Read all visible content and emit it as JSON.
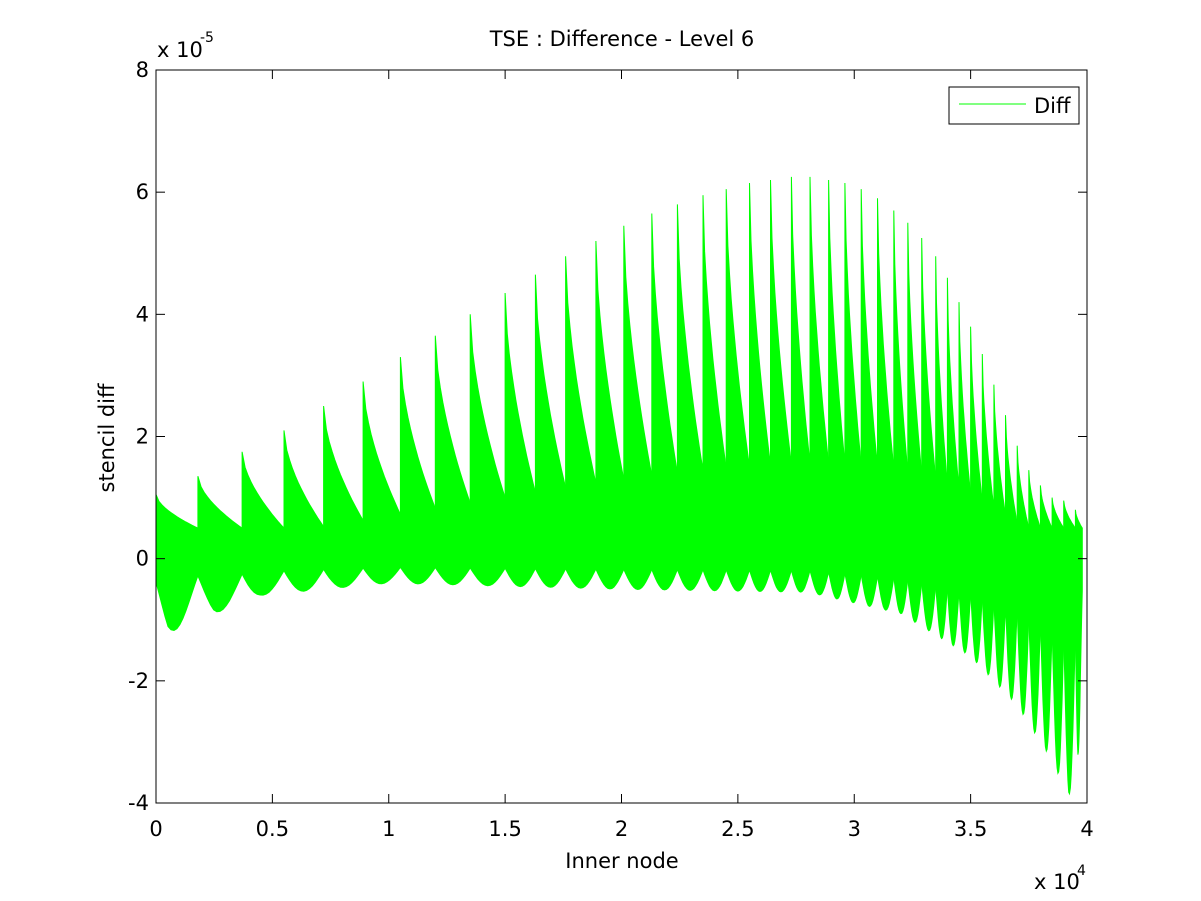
{
  "chart_data": {
    "type": "line",
    "title": "TSE : Difference - Level 6",
    "xlabel": "Inner node",
    "ylabel": "stencil diff",
    "x_multiplier": {
      "base": "x 10",
      "exp": "4"
    },
    "y_multiplier": {
      "base": "x 10",
      "exp": "-5"
    },
    "xlim": [
      0,
      40000
    ],
    "ylim": [
      -4e-05,
      8e-05
    ],
    "xticks": [
      0,
      5000,
      10000,
      15000,
      20000,
      25000,
      30000,
      35000,
      40000
    ],
    "xticklabels": [
      "0",
      "0.5",
      "1",
      "1.5",
      "2",
      "2.5",
      "3",
      "3.5",
      "4"
    ],
    "yticks": [
      -4e-05,
      -2e-05,
      0,
      2e-05,
      4e-05,
      6e-05,
      8e-05
    ],
    "yticklabels": [
      "-4",
      "-2",
      "0",
      "2",
      "4",
      "6",
      "8"
    ],
    "grid": false,
    "legend_position": "top-right",
    "series": [
      {
        "name": "Diff",
        "color": "#00ff00",
        "description_points": "upper envelope peaks per block (x in nodes, y in diff units)",
        "block_peaks": [
          [
            0,
            1.05e-05
          ],
          [
            1800,
            1.35e-05
          ],
          [
            3700,
            1.75e-05
          ],
          [
            5500,
            2.1e-05
          ],
          [
            7200,
            2.5e-05
          ],
          [
            8900,
            2.9e-05
          ],
          [
            10500,
            3.3e-05
          ],
          [
            12000,
            3.65e-05
          ],
          [
            13500,
            4e-05
          ],
          [
            15000,
            4.35e-05
          ],
          [
            16300,
            4.65e-05
          ],
          [
            17600,
            4.95e-05
          ],
          [
            18900,
            5.2e-05
          ],
          [
            20100,
            5.45e-05
          ],
          [
            21300,
            5.65e-05
          ],
          [
            22400,
            5.8e-05
          ],
          [
            23500,
            5.95e-05
          ],
          [
            24500,
            6.05e-05
          ],
          [
            25500,
            6.15e-05
          ],
          [
            26400,
            6.2e-05
          ],
          [
            27300,
            6.25e-05
          ],
          [
            28100,
            6.25e-05
          ],
          [
            28900,
            6.2e-05
          ],
          [
            29600,
            6.15e-05
          ],
          [
            30300,
            6.05e-05
          ],
          [
            31000,
            5.9e-05
          ],
          [
            31700,
            5.7e-05
          ],
          [
            32300,
            5.5e-05
          ],
          [
            32900,
            5.25e-05
          ],
          [
            33500,
            4.95e-05
          ],
          [
            34000,
            4.6e-05
          ],
          [
            34500,
            4.2e-05
          ],
          [
            35000,
            3.8e-05
          ],
          [
            35500,
            3.35e-05
          ],
          [
            36000,
            2.85e-05
          ],
          [
            36500,
            2.35e-05
          ],
          [
            37000,
            1.85e-05
          ],
          [
            37500,
            1.45e-05
          ],
          [
            38000,
            1.2e-05
          ],
          [
            38500,
            1e-05
          ],
          [
            39000,
            9.5e-06
          ],
          [
            39500,
            8e-06
          ]
        ],
        "lower_envelope": [
          [
            0,
            -1.1e-05
          ],
          [
            500,
            -1.3e-05
          ],
          [
            1800,
            -8e-06
          ],
          [
            2500,
            -9e-06
          ],
          [
            4500,
            -6e-06
          ],
          [
            10000,
            -4e-06
          ],
          [
            20000,
            -5e-06
          ],
          [
            28000,
            -5.5e-06
          ],
          [
            32000,
            -9e-06
          ],
          [
            35000,
            -1.6e-05
          ],
          [
            37000,
            -2.4e-05
          ],
          [
            38500,
            -3.3e-05
          ],
          [
            39200,
            -3.9e-05
          ],
          [
            39600,
            -3.5e-05
          ],
          [
            39800,
            -1.5e-05
          ]
        ],
        "x_end": 39800
      }
    ]
  }
}
